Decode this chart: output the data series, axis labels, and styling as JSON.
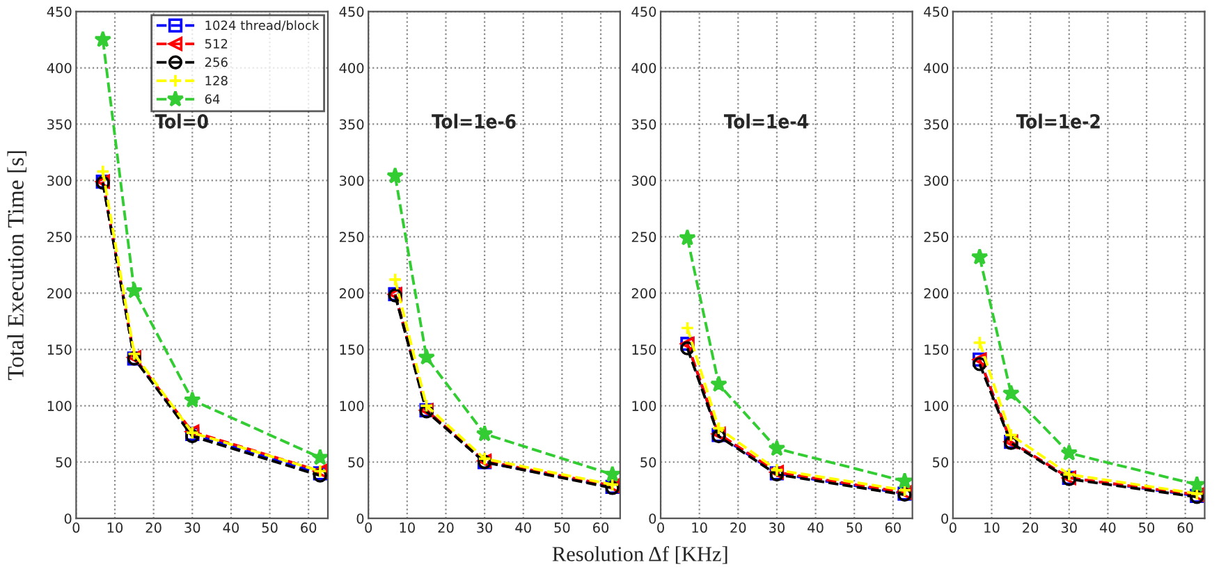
{
  "chart_data": [
    {
      "type": "line",
      "ylabel": "Total Execution Time [s]",
      "annotations": [
        "Tol=0"
      ],
      "x": [
        6.9,
        15,
        30,
        63
      ],
      "xlim": [
        0,
        65
      ],
      "ylim": [
        0,
        450
      ],
      "xticks": [
        0,
        10,
        20,
        30,
        40,
        50,
        60
      ],
      "yticks": [
        0,
        50,
        100,
        150,
        200,
        250,
        300,
        350,
        400,
        450
      ],
      "grid": true,
      "legend": "top right",
      "line_style": "dashed",
      "series": [
        {
          "name": "1024 thread/block",
          "color": "#0000ff",
          "marker": "square",
          "values": [
            299,
            142,
            75,
            40
          ]
        },
        {
          "name": "512",
          "color": "#ff0000",
          "marker": "triangle",
          "values": [
            299,
            143,
            77,
            42
          ]
        },
        {
          "name": "256",
          "color": "#000000",
          "marker": "circle",
          "values": [
            298,
            142,
            73,
            38
          ]
        },
        {
          "name": "128",
          "color": "#ffff00",
          "marker": "cross",
          "values": [
            308,
            146,
            76,
            42
          ]
        },
        {
          "name": "64",
          "color": "#33cc33",
          "marker": "star",
          "values": [
            425,
            202,
            105,
            54
          ]
        }
      ]
    },
    {
      "type": "line",
      "xlabel": "Resolution Δf [KHz]",
      "annotations": [
        "Tol=1e-6"
      ],
      "x": [
        6.9,
        15,
        30,
        63
      ],
      "xlim": [
        0,
        65
      ],
      "ylim": [
        0,
        450
      ],
      "xticks": [
        0,
        10,
        20,
        30,
        40,
        50,
        60
      ],
      "yticks": [
        0,
        50,
        100,
        150,
        200,
        250,
        300,
        350,
        400,
        450
      ],
      "grid": true,
      "line_style": "dashed",
      "series": [
        {
          "color": "#0000ff",
          "marker": "square",
          "values": [
            199,
            96,
            50,
            28
          ]
        },
        {
          "color": "#ff0000",
          "marker": "triangle",
          "values": [
            199,
            96,
            51,
            29
          ]
        },
        {
          "color": "#000000",
          "marker": "circle",
          "values": [
            198,
            95,
            50,
            27
          ]
        },
        {
          "color": "#ffff00",
          "marker": "cross",
          "values": [
            212,
            100,
            53,
            30
          ]
        },
        {
          "color": "#33cc33",
          "marker": "star",
          "values": [
            304,
            143,
            75,
            39
          ]
        }
      ]
    },
    {
      "type": "line",
      "annotations": [
        "Tol=1e-4"
      ],
      "x": [
        6.9,
        15,
        30,
        63
      ],
      "xlim": [
        0,
        65
      ],
      "ylim": [
        0,
        450
      ],
      "xticks": [
        0,
        10,
        20,
        30,
        40,
        50,
        60
      ],
      "yticks": [
        0,
        50,
        100,
        150,
        200,
        250,
        300,
        350,
        400,
        450
      ],
      "grid": true,
      "line_style": "dashed",
      "series": [
        {
          "color": "#0000ff",
          "marker": "square",
          "values": [
            155,
            74,
            40,
            22
          ]
        },
        {
          "color": "#ff0000",
          "marker": "triangle",
          "values": [
            155,
            75,
            41,
            23
          ]
        },
        {
          "color": "#000000",
          "marker": "circle",
          "values": [
            151,
            73,
            39,
            21
          ]
        },
        {
          "color": "#ffff00",
          "marker": "cross",
          "values": [
            169,
            80,
            43,
            25
          ]
        },
        {
          "color": "#33cc33",
          "marker": "star",
          "values": [
            249,
            119,
            62,
            33
          ]
        }
      ]
    },
    {
      "type": "line",
      "annotations": [
        "Tol=1e-2"
      ],
      "x": [
        6.9,
        15,
        30,
        63
      ],
      "xlim": [
        0,
        65
      ],
      "ylim": [
        0,
        450
      ],
      "xticks": [
        0,
        10,
        20,
        30,
        40,
        50,
        60
      ],
      "yticks": [
        0,
        50,
        100,
        150,
        200,
        250,
        300,
        350,
        400,
        450
      ],
      "grid": true,
      "line_style": "dashed",
      "series": [
        {
          "color": "#0000ff",
          "marker": "square",
          "values": [
            141,
            68,
            36,
            20
          ]
        },
        {
          "color": "#ff0000",
          "marker": "triangle",
          "values": [
            141,
            68,
            36,
            21
          ]
        },
        {
          "color": "#000000",
          "marker": "circle",
          "values": [
            137,
            67,
            35,
            19
          ]
        },
        {
          "color": "#ffff00",
          "marker": "cross",
          "values": [
            156,
            74,
            39,
            22
          ]
        },
        {
          "color": "#33cc33",
          "marker": "star",
          "values": [
            232,
            111,
            58,
            30
          ]
        }
      ]
    }
  ]
}
